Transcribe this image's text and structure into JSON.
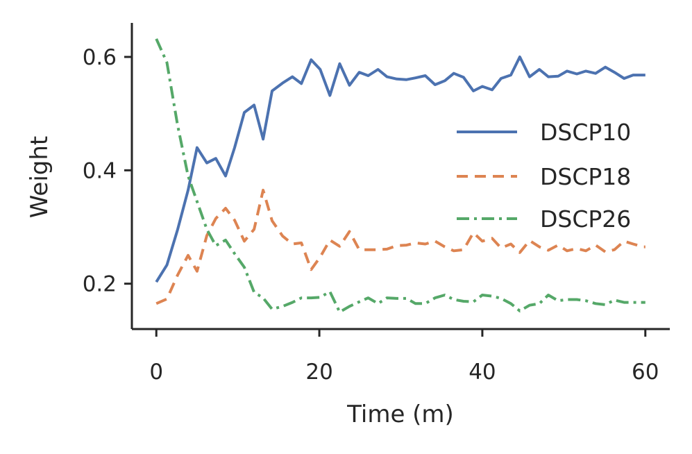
{
  "chart_data": {
    "type": "line",
    "title": "",
    "xlabel": "Time (m)",
    "ylabel": "Weight",
    "xlim": [
      -3,
      63
    ],
    "ylim": [
      0.12,
      0.66
    ],
    "xticks": [
      0,
      20,
      40,
      60
    ],
    "xtick_labels": [
      "0",
      "20",
      "40",
      "60"
    ],
    "yticks": [
      0.2,
      0.4,
      0.6
    ],
    "ytick_labels": [
      "0.2",
      "0.4",
      "0.6"
    ],
    "grid": false,
    "legend_position": "center-right",
    "x": [
      0,
      1.3,
      2.6,
      3.9,
      5,
      6.2,
      7.3,
      8.5,
      9.6,
      10.8,
      12,
      13.1,
      14.2,
      15.5,
      16.7,
      17.8,
      19,
      20.1,
      21.3,
      22.5,
      23.7,
      24.9,
      26,
      27.2,
      28.3,
      29.5,
      30.7,
      31.8,
      33,
      34.2,
      35.4,
      36.5,
      37.7,
      38.9,
      40,
      41.2,
      42.3,
      43.5,
      44.6,
      45.8,
      47,
      48.1,
      49.3,
      50.4,
      51.6,
      52.7,
      53.9,
      55.1,
      56.2,
      57.4,
      58.5,
      59.7,
      60
    ],
    "series": [
      {
        "name": "DSCP10",
        "color": "#4c72b0",
        "linestyle": "solid",
        "values": [
          0.203,
          0.233,
          0.295,
          0.365,
          0.44,
          0.413,
          0.421,
          0.39,
          0.44,
          0.502,
          0.515,
          0.455,
          0.54,
          0.554,
          0.565,
          0.553,
          0.595,
          0.578,
          0.532,
          0.588,
          0.55,
          0.573,
          0.567,
          0.578,
          0.565,
          0.561,
          0.56,
          0.563,
          0.567,
          0.551,
          0.558,
          0.571,
          0.564,
          0.54,
          0.548,
          0.542,
          0.562,
          0.568,
          0.6,
          0.565,
          0.578,
          0.565,
          0.566,
          0.575,
          0.57,
          0.575,
          0.571,
          0.582,
          0.573,
          0.562,
          0.568,
          0.568,
          0.568
        ]
      },
      {
        "name": "DSCP18",
        "color": "#dd8452",
        "linestyle": "dashed",
        "values": [
          0.165,
          0.173,
          0.215,
          0.25,
          0.222,
          0.285,
          0.315,
          0.333,
          0.312,
          0.275,
          0.296,
          0.365,
          0.311,
          0.284,
          0.27,
          0.272,
          0.225,
          0.247,
          0.277,
          0.266,
          0.292,
          0.26,
          0.26,
          0.26,
          0.261,
          0.267,
          0.268,
          0.272,
          0.27,
          0.275,
          0.265,
          0.258,
          0.26,
          0.29,
          0.275,
          0.28,
          0.263,
          0.27,
          0.255,
          0.276,
          0.265,
          0.259,
          0.268,
          0.258,
          0.262,
          0.258,
          0.268,
          0.256,
          0.26,
          0.275,
          0.27,
          0.265,
          0.265
        ]
      },
      {
        "name": "DSCP26",
        "color": "#55a868",
        "linestyle": "dashdot",
        "values": [
          0.632,
          0.59,
          0.48,
          0.39,
          0.345,
          0.296,
          0.267,
          0.277,
          0.253,
          0.229,
          0.185,
          0.175,
          0.155,
          0.16,
          0.167,
          0.175,
          0.175,
          0.176,
          0.186,
          0.15,
          0.16,
          0.168,
          0.175,
          0.165,
          0.175,
          0.174,
          0.174,
          0.165,
          0.165,
          0.175,
          0.18,
          0.172,
          0.169,
          0.168,
          0.18,
          0.178,
          0.174,
          0.165,
          0.152,
          0.162,
          0.165,
          0.18,
          0.17,
          0.172,
          0.172,
          0.17,
          0.165,
          0.163,
          0.171,
          0.167,
          0.167,
          0.167,
          0.167
        ]
      }
    ]
  }
}
